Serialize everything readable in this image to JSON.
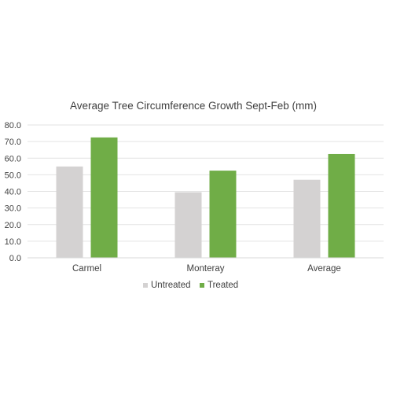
{
  "chart_data": {
    "type": "bar",
    "title": "Average Tree Circumference Growth Sept-Feb (mm)",
    "xlabel": "",
    "ylabel": "",
    "categories": [
      "Carmel",
      "Monteray",
      "Average"
    ],
    "series": [
      {
        "name": "Untreated",
        "values": [
          55.0,
          39.5,
          47.0
        ],
        "color": "#d4d2d2"
      },
      {
        "name": "Treated",
        "values": [
          72.5,
          52.5,
          62.5
        ],
        "color": "#70ad47"
      }
    ],
    "ylim": [
      0,
      80
    ],
    "yticks": [
      "0.0",
      "10.0",
      "20.0",
      "30.0",
      "40.0",
      "50.0",
      "60.0",
      "70.0",
      "80.0"
    ],
    "grid": true,
    "legend_position": "bottom"
  }
}
